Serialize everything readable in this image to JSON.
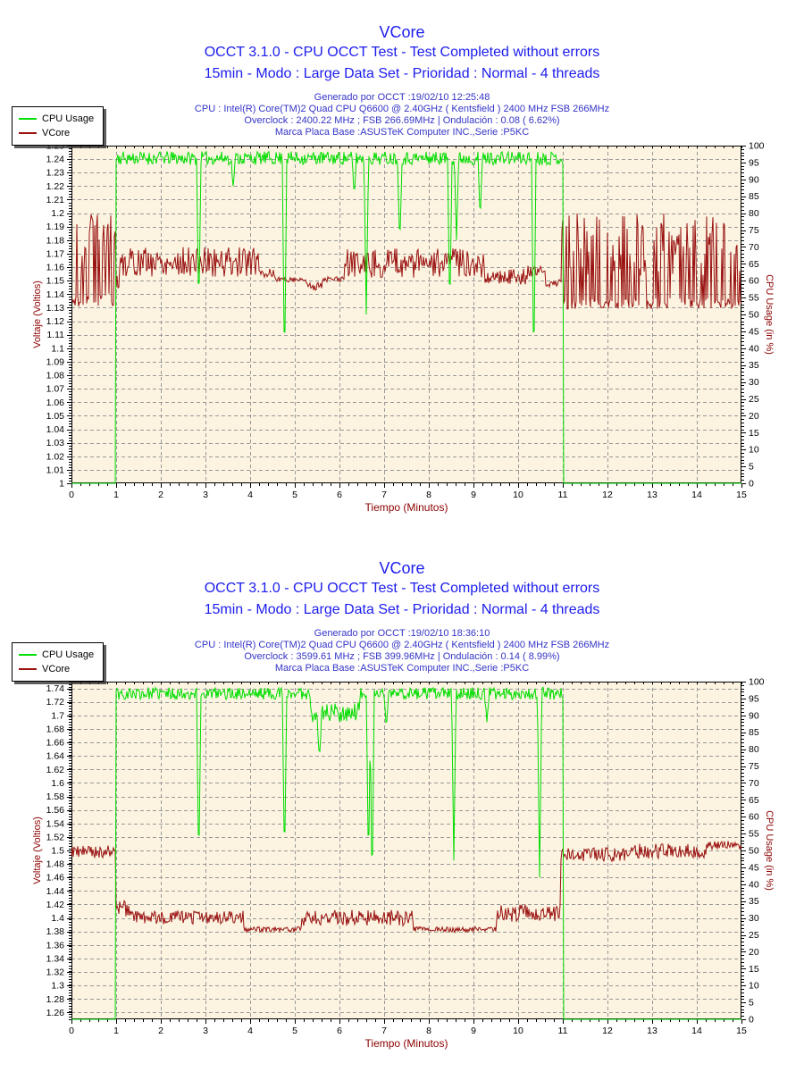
{
  "colors": {
    "title_blue": "#1c1cee",
    "info_blue": "#3434c8",
    "plot_bg": "#fcf4e0",
    "grid": "#999999",
    "axis_title_red": "#8b0000",
    "tick_label": "#000000",
    "cpu_green": "#00dd00",
    "vcore_red": "#991111"
  },
  "panels": [
    {
      "title": "VCore",
      "subtitle1": "OCCT 3.1.0 - CPU OCCT Test - Test Completed without errors",
      "subtitle2": "15min - Modo : Large Data Set - Prioridad : Normal - 4 threads",
      "info_lines": [
        "Generado por OCCT :19/02/10 12:25:48",
        "CPU : Intel(R) Core(TM)2 Quad CPU Q6600 @ 2.40GHz ( Kentsfield ) 2400 MHz FSB 266MHz",
        "Overclock : 2400.22 MHz ; FSB 266.69MHz | Ondulación : 0.08 ( 6.62%)",
        "Marca Placa Base :ASUSTeK Computer INC.,Serie :P5KC"
      ],
      "legend": [
        {
          "label": "CPU Usage"
        },
        {
          "label": "VCore"
        }
      ]
    },
    {
      "title": "VCore",
      "subtitle1": "OCCT 3.1.0 - CPU OCCT Test - Test Completed without errors",
      "subtitle2": "15min - Modo : Large Data Set - Prioridad : Normal - 4 threads",
      "info_lines": [
        "Generado por OCCT :19/02/10 18:36:10",
        "CPU : Intel(R) Core(TM)2 Quad CPU Q6600 @ 2.40GHz ( Kentsfield ) 2400 MHz FSB 266MHz",
        "Overclock : 3599.61 MHz ; FSB 399.96MHz | Ondulación : 0.14 ( 8.99%)",
        "Marca Placa Base :ASUSTeK Computer INC.,Serie :P5KC"
      ],
      "legend": [
        {
          "label": "CPU Usage"
        },
        {
          "label": "VCore"
        }
      ]
    }
  ],
  "chart_data": [
    {
      "type": "line",
      "title": "VCore",
      "x_axis": {
        "label": "Tiempo (Minutos)",
        "min": 0,
        "max": 15,
        "tick_step": 1,
        "minor_step": 0.2
      },
      "y_left": {
        "label": "Voltaje (Voltios)",
        "min": 1.0,
        "max": 1.25,
        "tick_step": 0.01,
        "minor_step": 0.002
      },
      "y_right": {
        "label": "CPU Usage (in %)",
        "min": 0,
        "max": 100,
        "tick_step": 5,
        "minor_step": 1
      },
      "grid": true,
      "legend_position": "top-left",
      "series": [
        {
          "name": "CPU Usage",
          "axis": "right",
          "color": "#00dd00",
          "seed": 11,
          "segments": [
            {
              "from": 0,
              "to": 1,
              "base": 0,
              "noise": 0
            },
            {
              "from": 1,
              "to": 11,
              "base": 96.3,
              "noise": 2
            },
            {
              "from": 11,
              "to": 15,
              "base": 0,
              "noise": 0
            }
          ],
          "dips": [
            {
              "x": 2.85,
              "to": 50
            },
            {
              "x": 4.77,
              "to": 32
            },
            {
              "x": 6.6,
              "to": 50
            },
            {
              "x": 8.47,
              "to": 50
            },
            {
              "x": 10.35,
              "to": 32
            },
            {
              "x": 6.33,
              "to": 85
            },
            {
              "x": 7.35,
              "to": 70
            },
            {
              "x": 8.62,
              "to": 72
            },
            {
              "x": 9.15,
              "to": 78
            },
            {
              "x": 3.62,
              "to": 88
            }
          ]
        },
        {
          "name": "VCore",
          "axis": "left",
          "color": "#991111",
          "seed": 5,
          "segments": [
            {
              "from": 0,
              "to": 0.08,
              "base": 1.135,
              "noise": 0.002
            },
            {
              "from": 0.08,
              "to": 1.0,
              "base": 1.136,
              "noise": 0.005,
              "spikes": {
                "rate": 0.45,
                "max": 1.202
              }
            },
            {
              "from": 1.0,
              "to": 1.1,
              "base": 1.15,
              "noise": 0.01
            },
            {
              "from": 1.1,
              "to": 4.2,
              "base": 1.164,
              "noise": 0.011
            },
            {
              "from": 4.2,
              "to": 4.55,
              "base": 1.156,
              "noise": 0.005
            },
            {
              "from": 4.55,
              "to": 5.25,
              "base": 1.151,
              "noise": 0.002
            },
            {
              "from": 5.25,
              "to": 5.6,
              "base": 1.146,
              "noise": 0.003
            },
            {
              "from": 5.6,
              "to": 6.1,
              "base": 1.151,
              "noise": 0.002
            },
            {
              "from": 6.1,
              "to": 9.25,
              "base": 1.163,
              "noise": 0.011
            },
            {
              "from": 9.25,
              "to": 10.2,
              "base": 1.153,
              "noise": 0.006
            },
            {
              "from": 10.2,
              "to": 10.6,
              "base": 1.157,
              "noise": 0.004
            },
            {
              "from": 10.6,
              "to": 10.97,
              "base": 1.148,
              "noise": 0.003
            },
            {
              "from": 10.97,
              "to": 15,
              "base": 1.133,
              "noise": 0.004,
              "spikes": {
                "rate": 0.42,
                "max": 1.2
              }
            }
          ],
          "dips": []
        }
      ]
    },
    {
      "type": "line",
      "title": "VCore",
      "x_axis": {
        "label": "Tiempo (Minutos)",
        "min": 0,
        "max": 15,
        "tick_step": 1,
        "minor_step": 0.2
      },
      "y_left": {
        "label": "Voltaje (Voltios)",
        "min": 1.25,
        "max": 1.75,
        "tick_step": 0.02,
        "minor_step": 0.004
      },
      "y_right": {
        "label": "CPU Usage (in %)",
        "min": 0,
        "max": 100,
        "tick_step": 5,
        "minor_step": 1
      },
      "grid": true,
      "legend_position": "top-left",
      "series": [
        {
          "name": "CPU Usage",
          "axis": "right",
          "color": "#00dd00",
          "seed": 23,
          "segments": [
            {
              "from": 0,
              "to": 1,
              "base": 0,
              "noise": 0
            },
            {
              "from": 1,
              "to": 5.35,
              "base": 96.5,
              "noise": 1.8
            },
            {
              "from": 5.35,
              "to": 6.45,
              "base": 91,
              "noise": 3
            },
            {
              "from": 6.45,
              "to": 11,
              "base": 96.5,
              "noise": 1.8
            },
            {
              "from": 11,
              "to": 15,
              "base": 0,
              "noise": 0
            }
          ],
          "dips": [
            {
              "x": 2.85,
              "to": 44
            },
            {
              "x": 4.77,
              "to": 45
            },
            {
              "x": 6.65,
              "to": 44
            },
            {
              "x": 6.73,
              "to": 37
            },
            {
              "x": 8.56,
              "to": 47
            },
            {
              "x": 10.48,
              "to": 42
            },
            {
              "x": 5.55,
              "to": 76
            },
            {
              "x": 7.05,
              "to": 86
            },
            {
              "x": 9.3,
              "to": 88
            }
          ]
        },
        {
          "name": "VCore",
          "axis": "left",
          "color": "#991111",
          "seed": 9,
          "segments": [
            {
              "from": 0,
              "to": 1.0,
              "base": 1.498,
              "noise": 0.01
            },
            {
              "from": 1.0,
              "to": 1.3,
              "base": 1.414,
              "noise": 0.012
            },
            {
              "from": 1.3,
              "to": 3.85,
              "base": 1.401,
              "noise": 0.01
            },
            {
              "from": 3.85,
              "to": 5.15,
              "base": 1.383,
              "noise": 0.004
            },
            {
              "from": 5.15,
              "to": 7.65,
              "base": 1.4,
              "noise": 0.012
            },
            {
              "from": 7.65,
              "to": 9.5,
              "base": 1.383,
              "noise": 0.004
            },
            {
              "from": 9.5,
              "to": 10.95,
              "base": 1.407,
              "noise": 0.013
            },
            {
              "from": 10.95,
              "to": 12.4,
              "base": 1.494,
              "noise": 0.01
            },
            {
              "from": 12.4,
              "to": 14.2,
              "base": 1.499,
              "noise": 0.011
            },
            {
              "from": 14.2,
              "to": 15,
              "base": 1.508,
              "noise": 0.006
            }
          ],
          "dips": []
        }
      ]
    }
  ]
}
